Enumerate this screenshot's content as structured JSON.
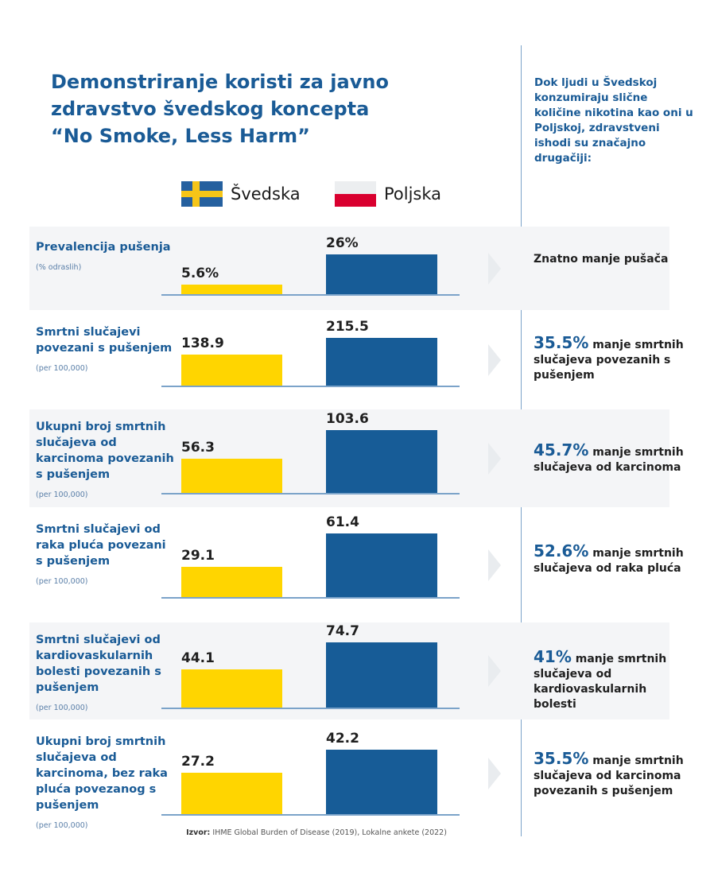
{
  "title": "Demonstriranje koristi za javno zdravstvo švedskog koncepta “No Smoke, Less Harm”",
  "intro": "Dok ljudi u Švedskoj konzumiraju slične količine nikotina kao oni u Poljskoj, zdravstveni ishodi su značajno drugačiji:",
  "colors": {
    "sweden": "#ffd500",
    "poland": "#175c97",
    "accent": "#1a5b96"
  },
  "chart_data": {
    "type": "bar",
    "legend": [
      {
        "name": "Švedska",
        "icon": "sweden-flag-icon"
      },
      {
        "name": "Poljska",
        "icon": "poland-flag-icon"
      }
    ],
    "legend_placement": "top",
    "series_names": [
      "Švedska",
      "Poljska"
    ],
    "rows": [
      {
        "label": "Prevalencija pušenja",
        "unit": "(% odraslih)",
        "sweden": 5.6,
        "poland": 26,
        "sweden_label": "5.6%",
        "poland_label": "26%",
        "result_pct": "",
        "result_text": "Znatno manje pušača"
      },
      {
        "label": "Smrtni slučajevi povezani s pušenjem",
        "unit": "(per 100,000)",
        "sweden": 138.9,
        "poland": 215.5,
        "sweden_label": "138.9",
        "poland_label": "215.5",
        "result_pct": "35.5%",
        "result_text": "manje smrtnih slučajeva povezanih s pušenjem"
      },
      {
        "label": "Ukupni broj smrtnih slučajeva od karcinoma povezanih s pušenjem",
        "unit": "(per 100,000)",
        "sweden": 56.3,
        "poland": 103.6,
        "sweden_label": "56.3",
        "poland_label": "103.6",
        "result_pct": "45.7%",
        "result_text": "manje smrtnih slučajeva od karcinoma"
      },
      {
        "label": "Smrtni slučajevi od raka pluća povezani s pušenjem",
        "unit": "(per 100,000)",
        "sweden": 29.1,
        "poland": 61.4,
        "sweden_label": "29.1",
        "poland_label": "61.4",
        "result_pct": "52.6%",
        "result_text": "manje smrtnih slučajeva od raka pluća"
      },
      {
        "label": "Smrtni slučajevi od kardiovaskularnih bolesti povezanih s pušenjem",
        "unit": "(per 100,000)",
        "sweden": 44.1,
        "poland": 74.7,
        "sweden_label": "44.1",
        "poland_label": "74.7",
        "result_pct": "41%",
        "result_text": "manje smrtnih slučajeva od kardiovaskularnih bolesti"
      },
      {
        "label": "Ukupni broj smrtnih slučajeva od karcinoma, bez raka pluća povezanog s pušenjem",
        "unit": "(per 100,000)",
        "sweden": 27.2,
        "poland": 42.2,
        "sweden_label": "27.2",
        "poland_label": "42.2",
        "result_pct": "35.5%",
        "result_text": "manje smrtnih slučajeva od karcinoma povezanih s pušenjem"
      }
    ]
  },
  "source": {
    "label": "Izvor:",
    "text": "IHME Global Burden of Disease (2019), Lokalne ankete (2022)"
  }
}
